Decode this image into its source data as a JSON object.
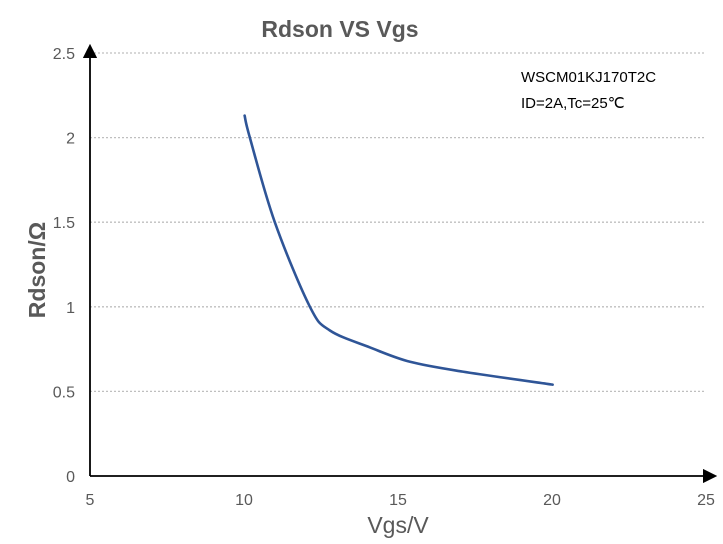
{
  "chart_data": {
    "type": "line",
    "title": "Rdson VS Vgs",
    "xlabel": "Vgs/V",
    "ylabel": "Rdson/Ω",
    "xlim": [
      5,
      25
    ],
    "ylim": [
      0,
      2.5
    ],
    "xticks": [
      5,
      10,
      15,
      20,
      25
    ],
    "yticks": [
      0,
      0.5,
      1,
      1.5,
      2,
      2.5
    ],
    "xtick_labels": [
      "5",
      "10",
      "15",
      "20",
      "25"
    ],
    "ytick_labels": [
      "0",
      "0.5",
      "1",
      "1.5",
      "2",
      "2.5"
    ],
    "grid": "horizontal dotted",
    "annotations": [
      "WSCM01KJ170T2C",
      "ID=2A,Tc=25℃"
    ],
    "series": [
      {
        "color": "#2f5597",
        "x": [
          10.02,
          10.19,
          11.0,
          12.14,
          12.79,
          14.09,
          15.39,
          17.1,
          20.02
        ],
        "y": [
          2.13,
          2.0,
          1.5,
          1.0,
          0.86,
          0.76,
          0.675,
          0.617,
          0.54
        ]
      }
    ]
  }
}
